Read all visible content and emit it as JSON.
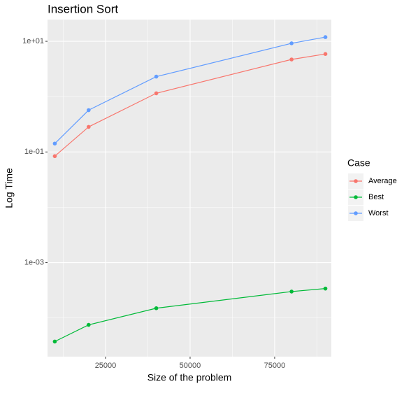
{
  "chart_data": {
    "type": "line",
    "title": "Insertion Sort",
    "x_label": "Size of the problem",
    "y_label": "Log Time",
    "legend_title": "Case",
    "x": [
      10000,
      20000,
      40000,
      80000,
      90000
    ],
    "series": [
      {
        "name": "Average",
        "color": "#F8766D",
        "values": [
          0.084,
          0.284,
          1.15,
          4.7,
          5.9
        ]
      },
      {
        "name": "Best",
        "color": "#00BA38",
        "values": [
          3.75e-05,
          7.5e-05,
          0.00015,
          0.0003,
          0.00034
        ]
      },
      {
        "name": "Worst",
        "color": "#619CFF",
        "values": [
          0.142,
          0.57,
          2.3,
          9.2,
          11.9
        ]
      }
    ],
    "xlim": [
      7850,
      91750
    ],
    "xticks": [
      25000,
      50000,
      75000
    ],
    "ylim": [
      2e-05,
      24.7
    ],
    "ylog": true,
    "yticks": [
      {
        "value": 0.001,
        "label": "1e-03"
      },
      {
        "value": 0.1,
        "label": "1e-01"
      },
      {
        "value": 10,
        "label": "1e+01"
      }
    ],
    "grid": true,
    "legend": "right"
  }
}
